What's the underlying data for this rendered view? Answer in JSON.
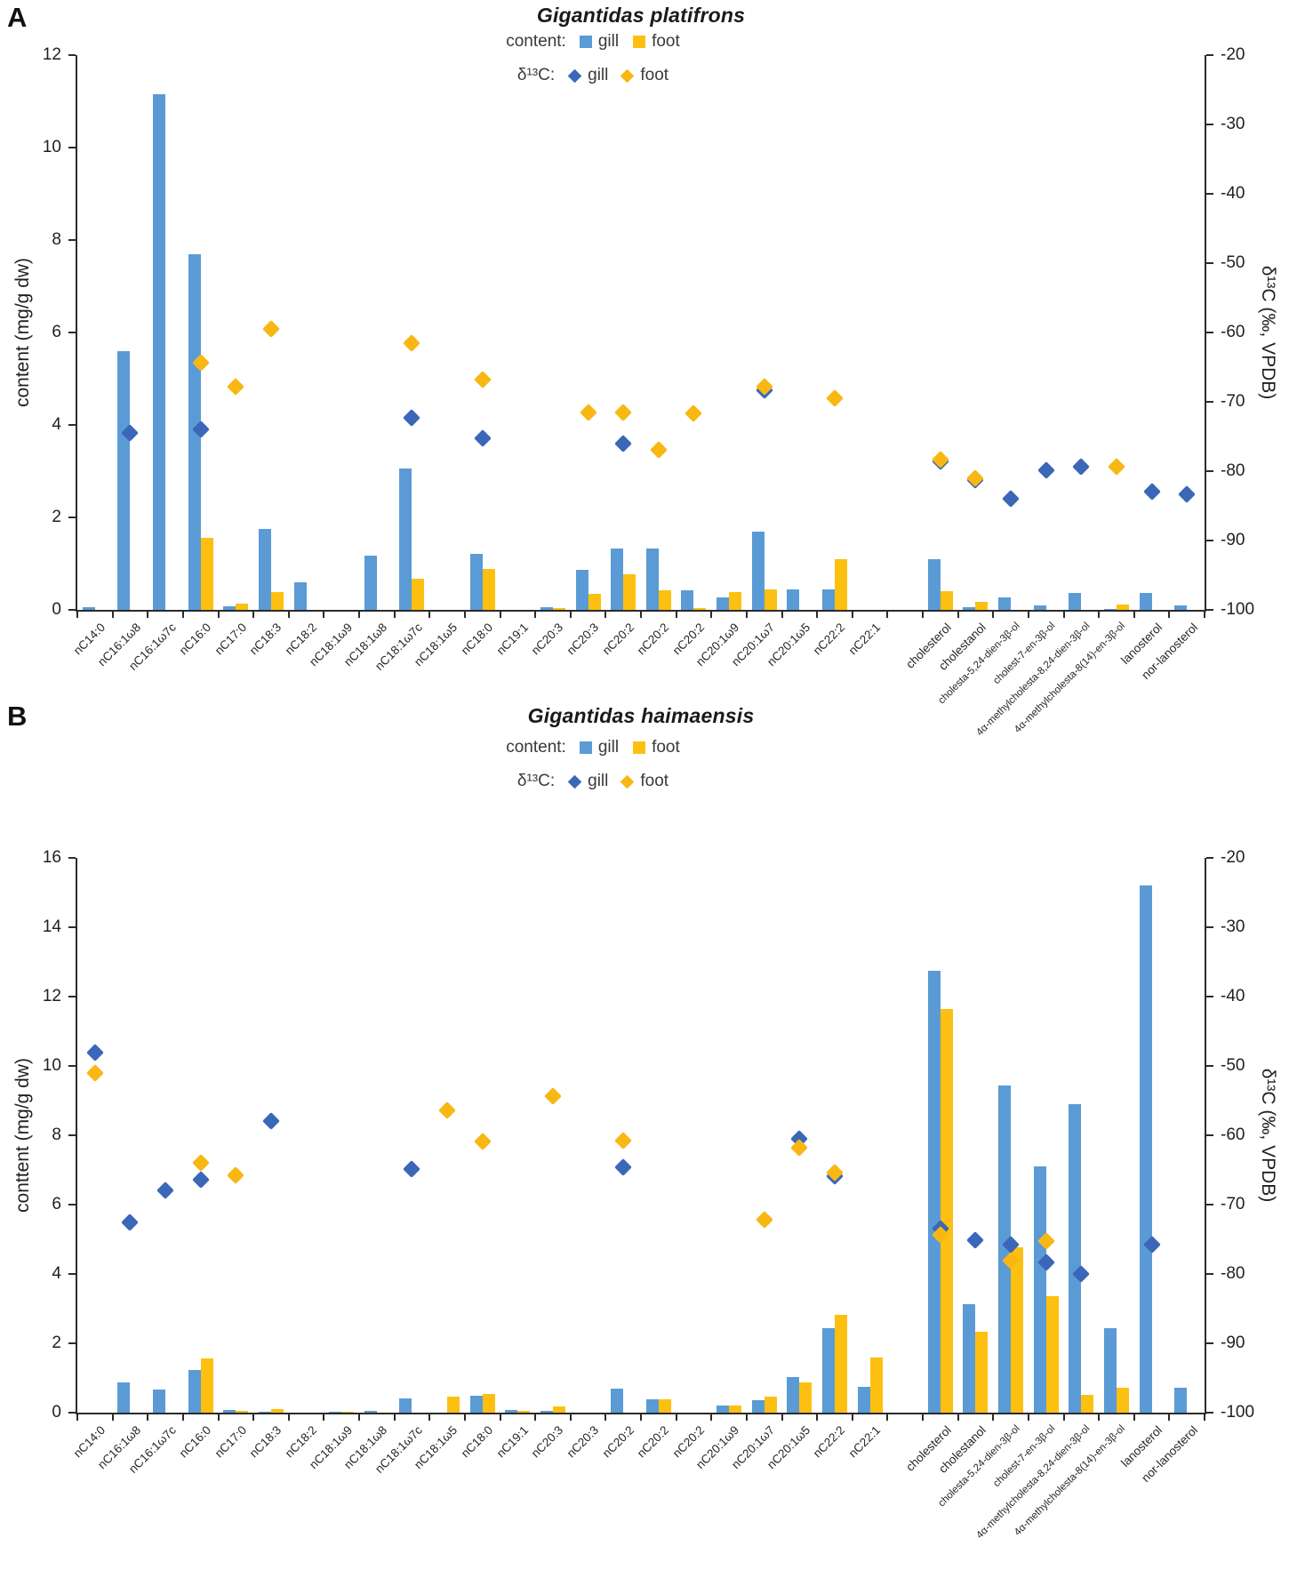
{
  "figure": {
    "panel_letters": [
      "A",
      "B"
    ],
    "units_left": "mg/g dw",
    "units_right": "‰, VPDB"
  },
  "chart_data": [
    {
      "id": "A",
      "type": "bar+scatter",
      "title": "Gigantidas platifrons",
      "legend": {
        "content_label": "content:",
        "delta_label": "δ¹³C:",
        "gill_label": "gill",
        "foot_label": "foot"
      },
      "left_axis": {
        "title": "content (mg/g dw)",
        "min": 0,
        "max": 12,
        "step": 2
      },
      "right_axis": {
        "title": "δ¹³C (‰, VPDB)",
        "min": -100,
        "max": -20,
        "step": 10
      },
      "legend_position": "top-center",
      "grid": false,
      "categories": [
        "nC14:0",
        "nC16:1ω8",
        "nC16:1ω7c",
        "nC16:0",
        "nC17:0",
        "nC18:3",
        "nC18:2",
        "nC18:1ω9",
        "nC18:1ω8",
        "nC18:1ω7c",
        "nC18:1ω5",
        "nC18:0",
        "nC19:1",
        "nC20:3",
        "nC20:3",
        "nC20:2",
        "nC20:2",
        "nC20:2",
        "nC20:1ω9",
        "nC20:1ω7",
        "nC20:1ω5",
        "nC22:2",
        "nC22:1",
        "",
        "cholesterol",
        "cholestanol",
        "cholesta-5,24-dien-3β-ol",
        "cholest-7-en-3β-ol",
        "4α-methylcholesta-8,24-dien-3β-ol",
        "4α-methylcholesta-8(14)-en-3β-ol",
        "lanosterol",
        "nor-lanosterol"
      ],
      "series": {
        "content_gill": [
          0.05,
          5.6,
          11.15,
          7.7,
          0.08,
          1.75,
          0.6,
          null,
          1.17,
          3.06,
          null,
          1.22,
          null,
          0.06,
          0.87,
          1.33,
          1.32,
          0.43,
          0.26,
          1.7,
          0.45,
          0.44,
          null,
          null,
          1.1,
          0.05,
          0.27,
          0.09,
          0.37,
          0.02,
          0.37,
          0.1
        ],
        "content_foot": [
          null,
          null,
          null,
          1.55,
          0.13,
          0.38,
          null,
          null,
          null,
          0.68,
          null,
          0.88,
          null,
          0.04,
          0.35,
          0.77,
          0.42,
          0.03,
          0.38,
          0.45,
          null,
          1.1,
          null,
          null,
          0.4,
          0.18,
          null,
          null,
          null,
          0.12,
          null,
          null
        ],
        "d13c_gill": [
          null,
          -74.5,
          null,
          -74,
          null,
          null,
          null,
          null,
          null,
          -72.3,
          null,
          -75.3,
          null,
          null,
          null,
          -76,
          null,
          null,
          null,
          -68.3,
          null,
          null,
          null,
          null,
          -78.6,
          -81.3,
          -84,
          -79.9,
          -79.4,
          null,
          -83,
          -83.3
        ],
        "d13c_foot": [
          null,
          null,
          null,
          -64.3,
          -67.8,
          -59.5,
          null,
          null,
          null,
          -61.6,
          null,
          -66.8,
          null,
          null,
          -71.6,
          -71.6,
          -76.9,
          -71.7,
          null,
          -67.8,
          null,
          -69.5,
          null,
          null,
          -78.3,
          -81,
          null,
          null,
          null,
          -79.3,
          null,
          null
        ]
      }
    },
    {
      "id": "B",
      "type": "bar+scatter",
      "title": "Gigantidas haimaensis",
      "legend": {
        "content_label": "content:",
        "delta_label": "δ¹³C:",
        "gill_label": "gill",
        "foot_label": "foot"
      },
      "left_axis": {
        "title": "conttent (mg/g dw)",
        "min": 0,
        "max": 16,
        "step": 2
      },
      "right_axis": {
        "title": "δ¹³C (‰, VPDB)",
        "min": -100,
        "max": -20,
        "step": 10
      },
      "legend_position": "top-center",
      "grid": false,
      "categories": [
        "nC14:0",
        "nC16:1ω8",
        "nC16:1ω7c",
        "nC16:0",
        "nC17:0",
        "nC18:3",
        "nC18:2",
        "nC18:1ω9",
        "nC18:1ω8",
        "nC18:1ω7c",
        "nC18:1ω5",
        "nC18:0",
        "nC19:1",
        "nC20:3",
        "nC20:3",
        "nC20:2",
        "nC20:2",
        "nC20:2",
        "nC20:1ω9",
        "nC20:1ω7",
        "nC20:1ω5",
        "nC22:2",
        "nC22:1",
        "",
        "cholesterol",
        "cholestanol",
        "cholesta-5,24-dien-3β-ol",
        "cholest-7-en-3β-ol",
        "4α-methylcholesta-8,24-dien-3β-ol",
        "4α-methylcholesta-8(14)-en-3β-ol",
        "lanosterol",
        "nor-lanosterol"
      ],
      "series": {
        "content_gill": [
          null,
          0.87,
          0.66,
          1.24,
          0.08,
          0.03,
          null,
          0.03,
          0.05,
          0.42,
          null,
          0.5,
          0.08,
          0.04,
          null,
          0.68,
          0.39,
          null,
          0.2,
          0.35,
          1.03,
          2.44,
          0.75,
          null,
          12.75,
          3.14,
          9.44,
          7.11,
          8.89,
          2.43,
          15.2,
          0.72
        ],
        "content_foot": [
          null,
          null,
          null,
          1.56,
          0.04,
          0.1,
          null,
          0.02,
          null,
          null,
          0.46,
          0.53,
          0.06,
          0.18,
          null,
          null,
          0.38,
          null,
          0.21,
          0.47,
          0.88,
          2.82,
          1.59,
          null,
          11.64,
          2.33,
          4.76,
          3.35,
          0.51,
          0.72,
          null,
          null
        ],
        "d13c_gill": [
          -48.1,
          -72.5,
          -68,
          -66.4,
          null,
          -57.9,
          null,
          null,
          null,
          -64.9,
          null,
          null,
          null,
          null,
          null,
          -64.6,
          null,
          null,
          null,
          null,
          -60.5,
          -65.9,
          null,
          null,
          -73.5,
          -75.1,
          -75.8,
          -78.3,
          -80,
          null,
          -75.8,
          null
        ],
        "d13c_foot": [
          -51,
          null,
          null,
          -64,
          -65.8,
          null,
          null,
          null,
          null,
          null,
          -56.4,
          -60.9,
          null,
          -54.3,
          null,
          -60.8,
          null,
          null,
          null,
          -72.2,
          -61.8,
          -65.4,
          null,
          null,
          -74.4,
          null,
          -78.1,
          -75.3,
          null,
          null,
          null,
          null
        ]
      }
    }
  ],
  "colors": {
    "bar_gill": "#5b9bd5",
    "bar_foot": "#fdc011",
    "marker_gill": "#3a67b8",
    "marker_foot": "#f8b713",
    "axis": "#2b2b2b",
    "text": "#1f1f1f"
  }
}
